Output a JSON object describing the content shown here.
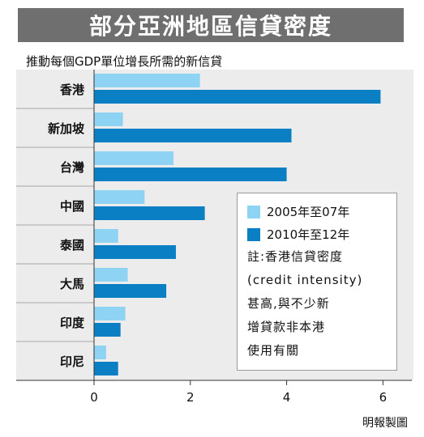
{
  "header": {
    "title": "部分亞洲地區信貸密度",
    "subtitle": "推動每個GDP單位增長所需的新信貸"
  },
  "chart_data": {
    "type": "bar",
    "orientation": "horizontal",
    "categories": [
      "香港",
      "新加坡",
      "台灣",
      "中國",
      "泰國",
      "大馬",
      "印度",
      "印尼"
    ],
    "series": [
      {
        "name": "2005年至07年",
        "color": "#8fd3f4",
        "values": [
          2.2,
          0.6,
          1.65,
          1.05,
          0.5,
          0.7,
          0.65,
          0.25
        ]
      },
      {
        "name": "2010年至12年",
        "color": "#0a7fc4",
        "values": [
          5.95,
          4.1,
          4.0,
          2.3,
          1.7,
          1.5,
          0.55,
          0.5
        ]
      }
    ],
    "xlim": [
      0,
      6.6
    ],
    "xticks": [
      0,
      2,
      4,
      6
    ],
    "grid": false,
    "legend_position": "bottom-right"
  },
  "legend": {
    "note_lines": [
      "註:香港信貸密度",
      "(credit intensity)",
      "甚高,與不少新",
      "增貸款非本港",
      "使用有關"
    ]
  },
  "footer": {
    "credit": "明報製圖"
  }
}
